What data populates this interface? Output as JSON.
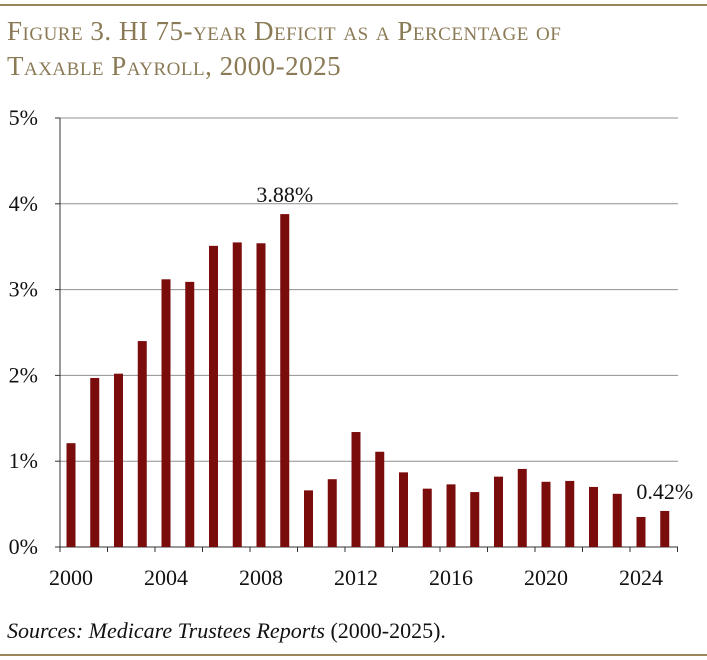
{
  "figure": {
    "title_line1": "Figure 3. HI 75-year Deficit as a Percentage of",
    "title_line2": "Taxable Payroll, 2000-2025",
    "source_italic": "Sources: Medicare Trustees Reports",
    "source_plain": " (2000-2025)."
  },
  "colors": {
    "bar": "#7b0c0c",
    "rule": "#9a8659",
    "grid": "#8f8f8f",
    "title": "#8a7a55"
  },
  "chart_data": {
    "type": "bar",
    "title": "HI 75-year Deficit as a Percentage of Taxable Payroll, 2000-2025",
    "xlabel": "",
    "ylabel": "",
    "x": [
      2000,
      2001,
      2002,
      2003,
      2004,
      2005,
      2006,
      2007,
      2008,
      2009,
      2010,
      2011,
      2012,
      2013,
      2014,
      2015,
      2016,
      2017,
      2018,
      2019,
      2020,
      2021,
      2022,
      2023,
      2024,
      2025
    ],
    "values": [
      1.21,
      1.97,
      2.02,
      2.4,
      3.12,
      3.09,
      3.51,
      3.55,
      3.54,
      3.88,
      0.66,
      0.79,
      1.34,
      1.11,
      0.87,
      0.68,
      0.73,
      0.64,
      0.82,
      0.91,
      0.76,
      0.77,
      0.7,
      0.62,
      0.35,
      0.42
    ],
    "ylim": [
      0,
      5
    ],
    "yticks": [
      0,
      1,
      2,
      3,
      4,
      5
    ],
    "ytick_labels": [
      "0%",
      "1%",
      "2%",
      "3%",
      "4%",
      "5%"
    ],
    "xtick_labels": [
      "2000",
      "2004",
      "2008",
      "2012",
      "2016",
      "2020",
      "2024"
    ],
    "xtick_years": [
      2000,
      2004,
      2008,
      2012,
      2016,
      2020,
      2024
    ],
    "annotations": [
      {
        "year": 2009,
        "text": "3.88%"
      },
      {
        "year": 2025,
        "text": "0.42%"
      }
    ],
    "grid": true
  }
}
